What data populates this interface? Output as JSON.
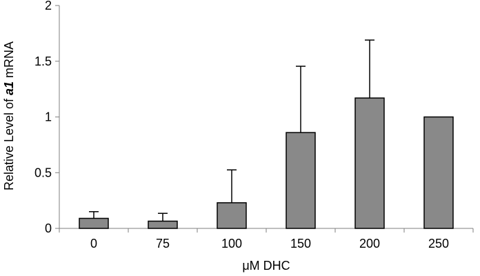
{
  "chart_data": {
    "type": "bar",
    "categories": [
      "0",
      "75",
      "100",
      "150",
      "200",
      "250"
    ],
    "values": [
      0.09,
      0.065,
      0.23,
      0.86,
      1.17,
      1.0
    ],
    "error_upper": [
      0.15,
      0.135,
      0.525,
      1.455,
      1.69,
      null
    ],
    "xlabel": "μM DHC",
    "ylabel": {
      "pre": "Relative Level of ",
      "em": "a1",
      "post": " mRNA"
    },
    "ylim": [
      0,
      2
    ],
    "yticks": [
      "0",
      "0.5",
      "1",
      "1.5",
      "2"
    ],
    "ytick_values": [
      0,
      0.5,
      1,
      1.5,
      2
    ],
    "grid": false,
    "legend": "none",
    "colors": {
      "bar": "#898989",
      "outline": "#000000",
      "axis": "#7f7f7f",
      "error": "#000000"
    }
  }
}
